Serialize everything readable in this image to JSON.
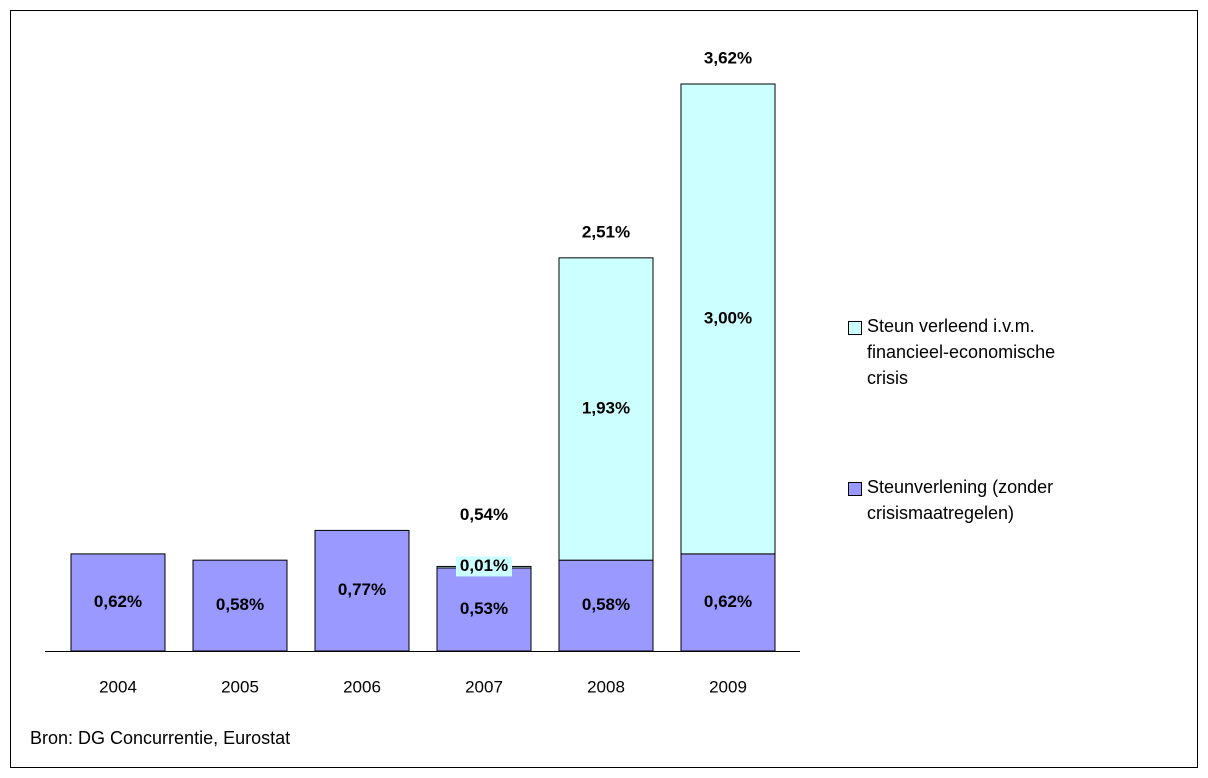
{
  "chart_data": {
    "type": "bar",
    "stacked": true,
    "categories": [
      "2004",
      "2005",
      "2006",
      "2007",
      "2008",
      "2009"
    ],
    "series": [
      {
        "name": "Steunverlening (zonder crisismaatregelen)",
        "color": "#9999ff",
        "values": [
          0.62,
          0.58,
          0.77,
          0.53,
          0.58,
          0.62
        ],
        "value_labels": [
          "0,62%",
          "0,58%",
          "0,77%",
          "0,53%",
          "0,58%",
          "0,62%"
        ]
      },
      {
        "name": "Steun verleend i.v.m. financieel-economische crisis",
        "color": "#ccffff",
        "values": [
          null,
          null,
          null,
          0.01,
          1.93,
          3.0
        ],
        "value_labels": [
          null,
          null,
          null,
          "0,01%",
          "1,93%",
          "3,00%"
        ]
      }
    ],
    "totals": {
      "values": [
        null,
        null,
        null,
        0.54,
        2.51,
        3.62
      ],
      "value_labels": [
        null,
        null,
        null,
        "0,54%",
        "2,51%",
        "3,62%"
      ]
    },
    "legend": "right",
    "source": "Bron: DG Concurrentie, Eurostat"
  }
}
